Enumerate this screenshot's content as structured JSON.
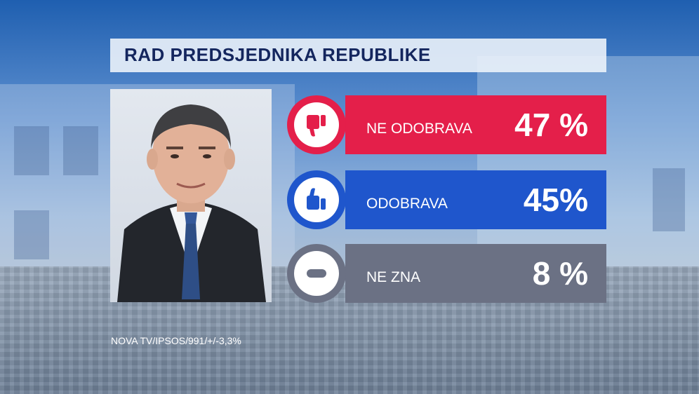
{
  "title": "RAD PREDSJEDNIKA REPUBLIKE",
  "source": "NOVA TV/IPSOS/991/+/-3,3%",
  "colors": {
    "disapprove": "#e41f4a",
    "approve": "#1f56cc",
    "unknown": "#6b7184"
  },
  "chart_data": {
    "type": "bar",
    "title": "RAD PREDSJEDNIKA REPUBLIKE",
    "categories": [
      "NE ODOBRAVA",
      "ODOBRAVA",
      "NE ZNA"
    ],
    "values": [
      47,
      45,
      8
    ],
    "value_labels": [
      "47 %",
      "45%",
      "8 %"
    ],
    "icons": [
      "thumbs-down-icon",
      "thumbs-up-icon",
      "minus-icon"
    ],
    "unit": "%"
  }
}
